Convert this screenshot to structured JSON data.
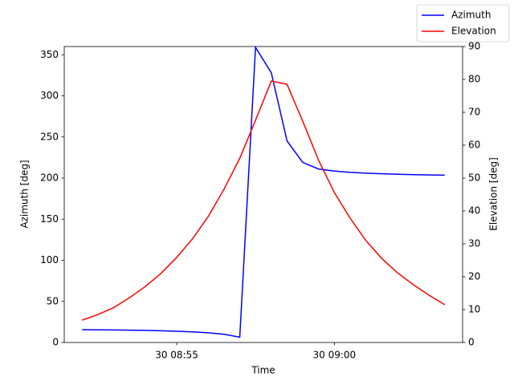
{
  "chart_data": {
    "type": "line",
    "xlabel": "Time",
    "ylabel": "Azimuth [deg]",
    "y2label": "Elevation [deg]",
    "x": [
      "30 08:52:00",
      "30 08:52:30",
      "30 08:53:00",
      "30 08:53:30",
      "30 08:54:00",
      "30 08:54:30",
      "30 08:55:00",
      "30 08:55:30",
      "30 08:56:00",
      "30 08:56:30",
      "30 08:57:00",
      "30 08:57:30",
      "30 08:58:00",
      "30 08:58:30",
      "30 08:59:00",
      "30 08:59:30",
      "30 09:00:00",
      "30 09:00:30",
      "30 09:01:00",
      "30 09:01:30",
      "30 09:02:00",
      "30 09:02:30",
      "30 09:03:00",
      "30 09:03:30"
    ],
    "series": [
      {
        "name": "Azimuth",
        "color": "#0000ff",
        "axis": "y",
        "values": [
          15.6,
          15.4,
          15.2,
          15.0,
          14.7,
          14.3,
          13.7,
          12.9,
          11.8,
          10.0,
          6.5,
          359,
          328,
          245,
          219,
          211,
          208.5,
          207,
          206,
          205.2,
          204.6,
          204.2,
          203.8,
          203.5
        ]
      },
      {
        "name": "Elevation",
        "color": "#ff0000",
        "axis": "y2",
        "values": [
          6.8,
          8.5,
          10.6,
          13.6,
          17,
          21,
          25.9,
          31.5,
          38.3,
          46.6,
          56,
          67.6,
          79.5,
          78.5,
          67.2,
          55.4,
          45.6,
          37.8,
          31,
          25.6,
          21.2,
          17.6,
          14.4,
          11.5
        ]
      }
    ],
    "xlim": [
      "30 08:51:26",
      "30 09:04:04"
    ],
    "xticks": [
      {
        "value": "30 08:55:00",
        "label": "30 08:55"
      },
      {
        "value": "30 09:00:00",
        "label": "30 09:00"
      }
    ],
    "ylim": [
      0,
      360
    ],
    "yticks": [
      0,
      50,
      100,
      150,
      200,
      250,
      300,
      350
    ],
    "y2lim": [
      0,
      90
    ],
    "y2ticks": [
      0,
      10,
      20,
      30,
      40,
      50,
      60,
      70,
      80,
      90
    ],
    "legend": "upper right"
  }
}
